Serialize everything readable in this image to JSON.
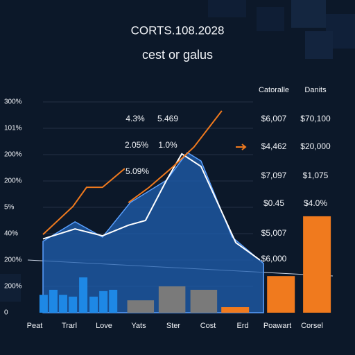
{
  "chart_data": {
    "type": "bar",
    "title": "CORTS.108.2028",
    "subtitle": "cest or galus",
    "categories": [
      "Peat",
      "Trarl",
      "Love",
      "Yats",
      "Ster",
      "Cost",
      "Erd",
      "Poawart",
      "Corsel"
    ],
    "ylim": [
      0,
      8
    ],
    "yticks": [
      0,
      {
        "value": 1,
        "label": "200%"
      },
      {
        "value": 2,
        "label": "200%"
      },
      {
        "value": 3,
        "label": "40%"
      },
      {
        "value": 4,
        "label": "5%"
      },
      {
        "value": 5,
        "label": "200%"
      },
      {
        "value": 6,
        "label": "200%"
      },
      {
        "value": 7,
        "label": "101%"
      },
      {
        "value": 8,
        "label": "300%"
      }
    ],
    "xlim": [
      0,
      100
    ],
    "grid": true,
    "bars": [
      {
        "color": "#1e88e5",
        "x": [
          5.2,
          8.4,
          11.6,
          14.8,
          18.2,
          21.6,
          24.8,
          28.0
        ],
        "values": [
          0.68,
          0.87,
          0.68,
          0.61,
          1.34,
          0.61,
          0.82,
          0.87
        ]
      },
      {
        "color": "#7a7a7a",
        "x": [
          37.0,
          47.3,
          57.7
        ],
        "values": [
          0.47,
          1.0,
          0.87
        ]
      },
      {
        "color": "#f07a1e",
        "x": [
          68.0,
          83.0,
          94.8
        ],
        "values": [
          0.21,
          1.39,
          3.66
        ]
      }
    ],
    "area": {
      "color": "#1f5fb0",
      "x": [
        5.0,
        15.5,
        24.5,
        33.6,
        45.5,
        52.3,
        56.8,
        67.0,
        77.3
      ],
      "values": [
        2.71,
        3.45,
        2.87,
        4.18,
        5.03,
        6.08,
        5.76,
        2.87,
        1.87
      ]
    },
    "lines": [
      {
        "color": "#ffffff",
        "x": [
          5.0,
          15.5,
          24.5,
          33.0,
          38.6,
          45.5,
          50.5,
          56.8,
          68.2,
          76.1
        ],
        "values": [
          2.8,
          3.18,
          2.92,
          3.32,
          3.5,
          5.03,
          6.03,
          5.55,
          2.66,
          2.0
        ]
      },
      {
        "color": "#f07a1e",
        "x": [
          5.0,
          14.8,
          19.3,
          24.5,
          31.8
        ],
        "values": [
          2.97,
          4.03,
          4.76,
          4.76,
          5.47
        ]
      },
      {
        "color": "#f07a1e",
        "x": [
          33.0,
          39.8,
          47.7,
          54.5,
          63.6
        ],
        "values": [
          4.18,
          4.76,
          5.55,
          6.29,
          7.66
        ]
      }
    ],
    "annotations": [
      "4.3%",
      "5.469",
      "2.05%",
      "1.0%",
      "5.09%"
    ],
    "table": {
      "headers": [
        "Catoralle",
        "Danits"
      ],
      "columns": [
        [
          "$6,007",
          "$4,462",
          "$7,097",
          "$0.45",
          "$5,007",
          "$6,000"
        ],
        [
          "$70,100",
          "$20,000",
          "$1,075",
          "$4.0%"
        ]
      ]
    }
  }
}
